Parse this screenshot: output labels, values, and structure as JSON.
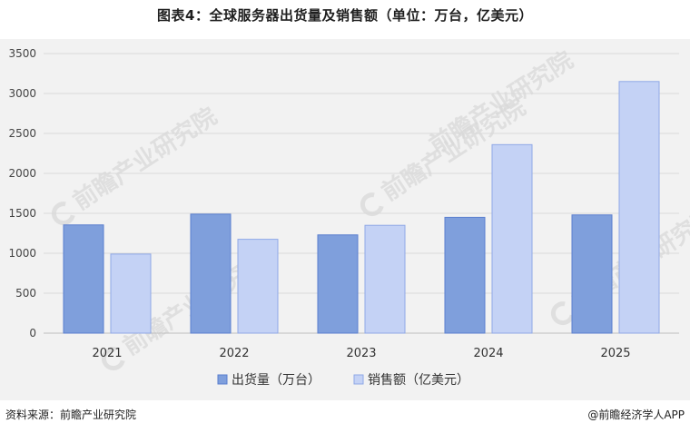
{
  "title": "图表4：全球服务器出货量及销售额（单位：万台，亿美元）",
  "watermark": "前瞻产业研究院",
  "source": "资料来源：前瞻产业研究院",
  "credit": "@前瞻经济学人APP",
  "chart_data": {
    "type": "bar",
    "categories": [
      "2021",
      "2022",
      "2023",
      "2024",
      "2025"
    ],
    "series": [
      {
        "name": "出货量（万台）",
        "values": [
          1355,
          1490,
          1230,
          1450,
          1480
        ],
        "color": "#7f9fdc"
      },
      {
        "name": "销售额（亿美元）",
        "values": [
          990,
          1175,
          1350,
          2360,
          3150
        ],
        "color": "#c4d2f5"
      }
    ],
    "ylim": [
      0,
      3500
    ],
    "yticks": [
      "0",
      "500",
      "1000",
      "1500",
      "2000",
      "2500",
      "3000",
      "3500"
    ],
    "grid": true,
    "legend": "bottom"
  }
}
